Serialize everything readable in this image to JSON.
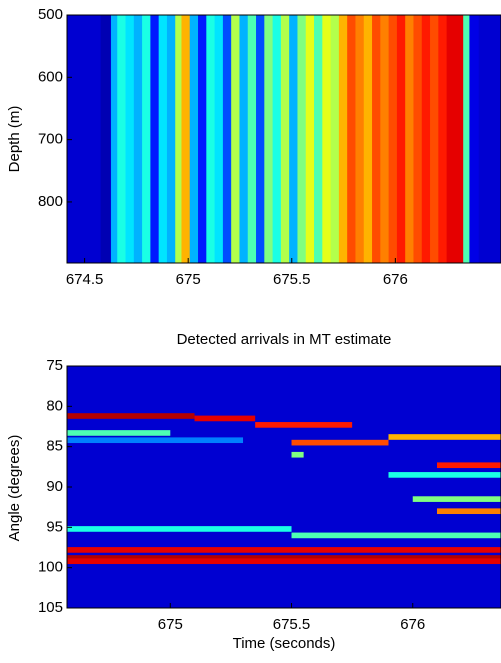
{
  "chart_data": [
    {
      "type": "stripes",
      "colormap": "jet",
      "ylabel": "Depth (m)",
      "xlim": [
        674.415,
        676.51
      ],
      "xticks": [
        674.5,
        675,
        675.5,
        676
      ],
      "ylim": [
        898,
        500
      ],
      "yticks": [
        500,
        600,
        700,
        800
      ],
      "x": [
        674.6,
        674.65,
        674.68,
        674.72,
        674.76,
        674.8,
        674.84,
        674.88,
        674.92,
        674.96,
        674.99,
        675.03,
        675.07,
        675.11,
        675.15,
        675.19,
        675.23,
        675.27,
        675.31,
        675.35,
        675.39,
        675.43,
        675.47,
        675.51,
        675.55,
        675.59,
        675.63,
        675.67,
        675.71,
        675.75,
        675.79,
        675.83,
        675.87,
        675.91,
        675.95,
        675.99,
        676.03,
        676.07,
        676.11,
        676.15,
        676.19,
        676.23,
        676.27,
        676.31,
        676.35,
        676.38
      ],
      "values": [
        0.05,
        0.3,
        0.4,
        0.35,
        0.3,
        0.4,
        0.15,
        0.35,
        0.3,
        0.55,
        0.7,
        0.3,
        0.15,
        0.4,
        0.35,
        0.2,
        0.55,
        0.3,
        0.45,
        0.2,
        0.5,
        0.4,
        0.55,
        0.3,
        0.5,
        0.6,
        0.45,
        0.6,
        0.55,
        0.7,
        0.8,
        0.75,
        0.7,
        0.8,
        0.75,
        0.8,
        0.85,
        0.75,
        0.8,
        0.85,
        0.8,
        0.85,
        0.9,
        0.9,
        0.45,
        0.1
      ]
    },
    {
      "type": "segments",
      "colormap": "jet",
      "title": "Detected arrivals in MT estimate",
      "xlabel": "Time (seconds)",
      "ylabel": "Angle (degrees)",
      "xlim": [
        674.574,
        676.364
      ],
      "xticks": [
        675,
        675.5,
        676
      ],
      "ylim": [
        105,
        75
      ],
      "yticks": [
        75,
        80,
        85,
        90,
        95,
        100,
        105
      ],
      "arrivals": [
        {
          "angle": 81.2,
          "t0": 674.574,
          "t1": 675.1,
          "intensity": 0.95
        },
        {
          "angle": 81.5,
          "t0": 675.1,
          "t1": 675.35,
          "intensity": 0.9
        },
        {
          "angle": 82.3,
          "t0": 675.35,
          "t1": 675.75,
          "intensity": 0.85
        },
        {
          "angle": 83.8,
          "t0": 675.9,
          "t1": 676.364,
          "intensity": 0.7
        },
        {
          "angle": 84.5,
          "t0": 675.5,
          "t1": 675.9,
          "intensity": 0.8
        },
        {
          "angle": 86,
          "t0": 675.5,
          "t1": 675.55,
          "intensity": 0.5
        },
        {
          "angle": 88.5,
          "t0": 675.9,
          "t1": 676.364,
          "intensity": 0.4
        },
        {
          "angle": 91.5,
          "t0": 676.0,
          "t1": 676.364,
          "intensity": 0.5
        },
        {
          "angle": 93,
          "t0": 676.1,
          "t1": 676.364,
          "intensity": 0.75
        },
        {
          "angle": 95.2,
          "t0": 674.574,
          "t1": 675.5,
          "intensity": 0.4
        },
        {
          "angle": 96,
          "t0": 675.5,
          "t1": 676.364,
          "intensity": 0.45
        },
        {
          "angle": 97.8,
          "t0": 674.574,
          "t1": 676.364,
          "intensity": 0.9
        },
        {
          "angle": 98.8,
          "t0": 674.574,
          "t1": 676.364,
          "intensity": 0.95
        },
        {
          "angle": 99.2,
          "t0": 674.574,
          "t1": 676.364,
          "intensity": 0.9
        },
        {
          "angle": 87.3,
          "t0": 676.1,
          "t1": 676.364,
          "intensity": 0.85
        },
        {
          "angle": 83.3,
          "t0": 674.574,
          "t1": 675.0,
          "intensity": 0.45
        },
        {
          "angle": 84.2,
          "t0": 674.574,
          "t1": 675.3,
          "intensity": 0.25
        }
      ]
    }
  ]
}
